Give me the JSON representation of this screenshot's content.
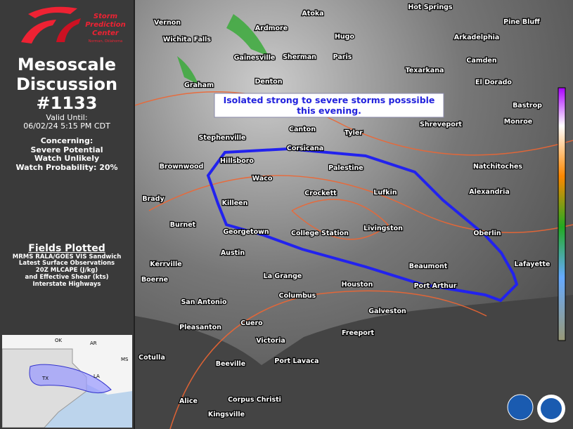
{
  "sidebar": {
    "logo": {
      "lines": [
        "Storm",
        "Prediction",
        "Center"
      ],
      "place": "Norman, Oklahoma"
    },
    "title": [
      "Mesoscale",
      "Discussion",
      "#1133"
    ],
    "valid_until": {
      "label": "Valid Until:",
      "value": "06/02/24 5:15 PM CDT"
    },
    "concerning": [
      "Concerning:",
      "Severe Potential",
      "Watch Unlikely",
      "Watch Probability: 20%"
    ],
    "fields_plotted": {
      "title": "Fields Plotted",
      "items": [
        "MRMS RALA/GOES VIS Sandwich",
        "Latest Surface Observations",
        "20Z MLCAPE (J/kg)",
        "and Effective Shear (kts)",
        "Interstate Highways"
      ]
    },
    "inset": {
      "labels": [
        "OK",
        "AR",
        "TX",
        "LA",
        "MS"
      ]
    }
  },
  "map": {
    "annotation": "Isolated strong to severe storms posssible this evening.",
    "cities": [
      "Vernon",
      "Wichita Falls",
      "Ardmore",
      "Atoka",
      "Hugo",
      "Hot Springs",
      "Pine Bluff",
      "Arkadelphia",
      "Gainesville",
      "Sherman",
      "Paris",
      "Camden",
      "Texarkana",
      "Graham",
      "Denton",
      "El Dorado",
      "Bastrop",
      "Shreveport",
      "Monroe",
      "Canton",
      "Tyler",
      "Stephenville",
      "Corsicana",
      "Hillsboro",
      "Palestine",
      "Natchitoches",
      "Brownwood",
      "Waco",
      "Crockett",
      "Lufkin",
      "Alexandria",
      "Brady",
      "Killeen",
      "Burnet",
      "Georgetown",
      "College Station",
      "Livingston",
      "Oberlin",
      "Austin",
      "Kerrville",
      "Beaumont",
      "Lafayette",
      "La Grange",
      "Boerne",
      "Houston",
      "Port Arthur",
      "Columbus",
      "San Antonio",
      "Galveston",
      "Pleasanton",
      "Cuero",
      "Freeport",
      "Victoria",
      "Cotulla",
      "Beeville",
      "Port Lavaca",
      "Alice",
      "Corpus Christi",
      "Kingsville"
    ]
  }
}
